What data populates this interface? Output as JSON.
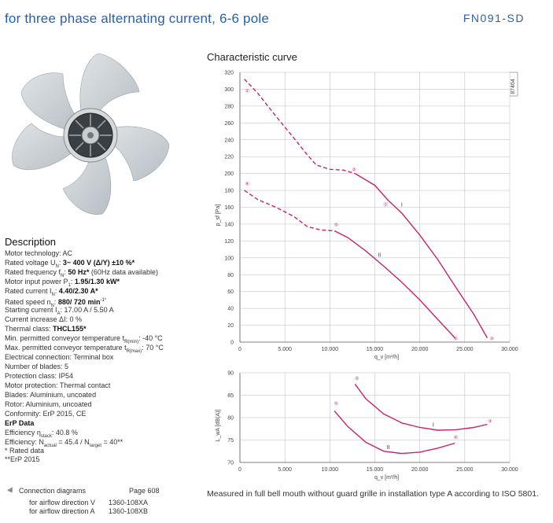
{
  "header": {
    "title": "for three phase alternating current, 6-6 pole",
    "model": "FN091-SD"
  },
  "chart_title": "Characteristic curve",
  "description": {
    "heading": "Description",
    "motor_technology": "Motor technology: AC",
    "rated_voltage_label": "Rated voltage U",
    "rated_voltage_sub": "N",
    "rated_voltage_value": "3~ 400 V (Δ/Y) ±10 %*",
    "rated_frequency_label": "Rated frequency f",
    "rated_frequency_sub": "N",
    "rated_frequency_value": "50 Hz*",
    "rated_frequency_note": " (60Hz data available)",
    "motor_input_label": "Motor input power P",
    "motor_input_sub": "1",
    "motor_input_value": "1.95/1.30 kW*",
    "rated_current_label": "Rated current I",
    "rated_current_sub": "N",
    "rated_current_value": "4.40/2.30 A*",
    "rated_speed_label": "Rated speed n",
    "rated_speed_sub": "N",
    "rated_speed_value": "880/ 720 min",
    "rated_speed_sup": "-1*",
    "starting_current_label": "Starting current I",
    "starting_current_sub": "A",
    "starting_current_value": ": 17.00 A / 5.50 A",
    "current_increase": "Current increase ΔI: 0 %",
    "thermal_class_label": "Thermal class: ",
    "thermal_class_value": "THCL155*",
    "min_temp_label": "Min. permitted conveyor temperature t",
    "min_temp_sub": "R(min)",
    "min_temp_value": ": -40 °C",
    "max_temp_label": "Max. permitted conveyor temperature t",
    "max_temp_sub": "R(max)",
    "max_temp_value": ": 70 °C",
    "electrical_connection": "Electrical connection: Terminal box",
    "blades": "Number of blades: 5",
    "protection": "Protection class: IP54",
    "motor_protection": "Motor protection: Thermal contact",
    "blades_material": "Blades: Aluminium, uncoated",
    "rotor": "Rotor: Aluminium, uncoated",
    "conformity": "Conformity: ErP 2015, CE",
    "erp_heading": "ErP Data",
    "eff_label": "Efficiency η",
    "eff_sub": "stack",
    "eff_value": ": 40.8 %",
    "effn_label": "Efficiency: N",
    "effn_sub1": "actual",
    "effn_mid": " = 45.4 / N",
    "effn_sub2": "target",
    "effn_value": " = 40**",
    "rated_data_note": "* Rated data",
    "erp_note": "**ErP 2015"
  },
  "connection": {
    "label": "Connection diagrams",
    "page": "Page 608",
    "row_v_label": "for airflow direction V",
    "row_v_code": "1360-108XA",
    "row_a_label": "for airflow direction A",
    "row_a_code": "1360-108XB"
  },
  "footnote": "Measured in full bell mouth without guard grille in installation type A according to ISO 5801.",
  "colors": {
    "curve": "#c8236d",
    "header": "#2a5fa8",
    "grid": "#bbbbbb"
  },
  "chart_data": [
    {
      "type": "line",
      "title": "Characteristic curve",
      "id_label": "87464",
      "xlabel": "q_v [m³/h]",
      "ylabel": "p_sf [Pa]",
      "xlim": [
        0,
        30000
      ],
      "ylim": [
        0,
        320
      ],
      "x_ticks": [
        "0",
        "5.000",
        "10.000",
        "15.000",
        "20.000",
        "25.000",
        "30.000"
      ],
      "y_ticks": [
        "0",
        "20",
        "40",
        "60",
        "80",
        "100",
        "120",
        "140",
        "160",
        "180",
        "200",
        "220",
        "240",
        "260",
        "280",
        "300",
        "320"
      ],
      "grid": true,
      "series": [
        {
          "name": "I",
          "style": "dashed",
          "points": [
            [
              500,
              312
            ],
            [
              2000,
              295
            ],
            [
              4000,
              268
            ],
            [
              6000,
              242
            ],
            [
              7500,
              222
            ],
            [
              8500,
              210
            ],
            [
              10000,
              205
            ],
            [
              11500,
              204
            ],
            [
              12800,
              200
            ]
          ]
        },
        {
          "name": "I",
          "style": "solid",
          "points": [
            [
              12800,
              200
            ],
            [
              15000,
              186
            ],
            [
              16500,
              168
            ],
            [
              18000,
              153
            ],
            [
              20000,
              127
            ],
            [
              22000,
              98
            ],
            [
              24000,
              65
            ],
            [
              26000,
              33
            ],
            [
              27500,
              5
            ]
          ]
        },
        {
          "name": "II",
          "style": "dashed",
          "points": [
            [
              500,
              180
            ],
            [
              2000,
              169
            ],
            [
              4000,
              160
            ],
            [
              6000,
              149
            ],
            [
              7500,
              137
            ],
            [
              9000,
              133
            ],
            [
              10500,
              132
            ]
          ]
        },
        {
          "name": "II",
          "style": "solid",
          "points": [
            [
              10500,
              132
            ],
            [
              12000,
              124
            ],
            [
              14000,
              108
            ],
            [
              16000,
              90
            ],
            [
              18000,
              71
            ],
            [
              20000,
              50
            ],
            [
              22000,
              27
            ],
            [
              23900,
              5
            ]
          ]
        }
      ],
      "annotations": [
        {
          "text": "①",
          "x": 800,
          "y": 298
        },
        {
          "text": "②",
          "x": 12700,
          "y": 205
        },
        {
          "text": "③",
          "x": 28000,
          "y": 4
        },
        {
          "text": "④",
          "x": 800,
          "y": 188
        },
        {
          "text": "⑤",
          "x": 10700,
          "y": 139
        },
        {
          "text": "⑥",
          "x": 24000,
          "y": 4
        },
        {
          "text": "⓪",
          "x": 16200,
          "y": 163
        },
        {
          "text": "I",
          "x": 18000,
          "y": 163
        },
        {
          "text": "II",
          "x": 15500,
          "y": 103
        }
      ]
    },
    {
      "type": "line",
      "xlabel": "q_v [m³/h]",
      "ylabel": "L_wA [dB(A)]",
      "xlim": [
        0,
        30000
      ],
      "ylim": [
        70,
        90
      ],
      "x_ticks": [
        "0",
        "5.000",
        "10.000",
        "15.000",
        "20.000",
        "25.000",
        "30.000"
      ],
      "y_ticks": [
        "70",
        "75",
        "80",
        "85",
        "90"
      ],
      "grid": true,
      "series": [
        {
          "name": "I",
          "points": [
            [
              12800,
              87.5
            ],
            [
              14000,
              84.2
            ],
            [
              16000,
              80.8
            ],
            [
              18000,
              78.8
            ],
            [
              20000,
              77.8
            ],
            [
              22000,
              77.2
            ],
            [
              24000,
              77.3
            ],
            [
              26000,
              77.8
            ],
            [
              27500,
              78.5
            ]
          ]
        },
        {
          "name": "II",
          "points": [
            [
              10500,
              81.5
            ],
            [
              12000,
              78.0
            ],
            [
              14000,
              74.5
            ],
            [
              16000,
              72.5
            ],
            [
              18000,
              72.0
            ],
            [
              20000,
              72.3
            ],
            [
              22000,
              73.2
            ],
            [
              23900,
              74.3
            ]
          ]
        }
      ],
      "annotations": [
        {
          "text": "②",
          "x": 13000,
          "y": 88.8
        },
        {
          "text": "③",
          "x": 27800,
          "y": 79.2
        },
        {
          "text": "⑤",
          "x": 10700,
          "y": 83.2
        },
        {
          "text": "⑥",
          "x": 24000,
          "y": 75.6
        },
        {
          "text": "I",
          "x": 21500,
          "y": 78.3
        },
        {
          "text": "II",
          "x": 16500,
          "y": 73.3
        }
      ]
    }
  ]
}
